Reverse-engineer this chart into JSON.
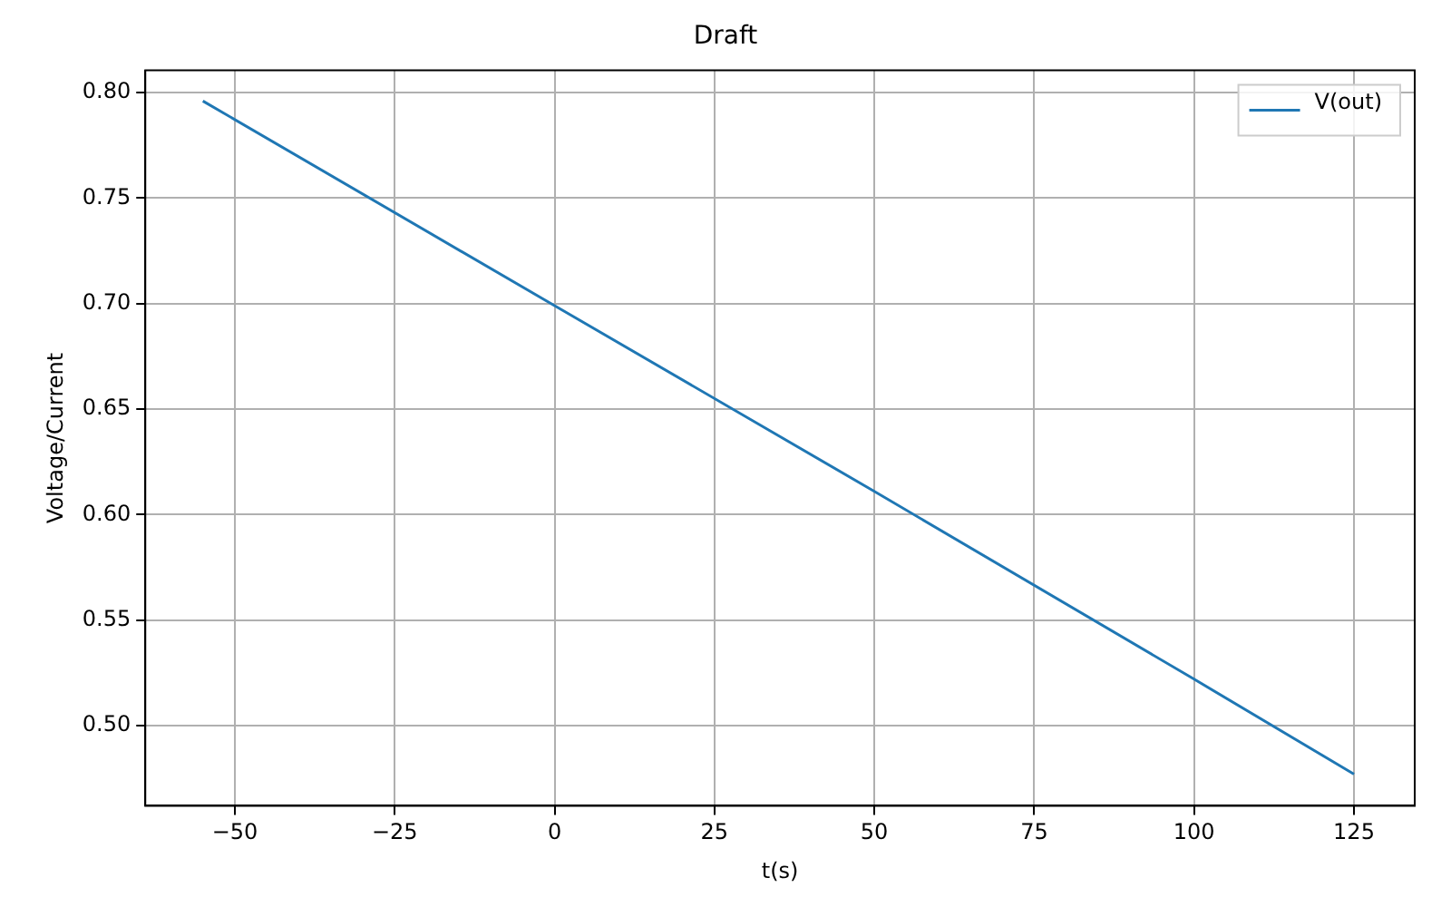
{
  "chart_data": {
    "type": "line",
    "title": "Draft",
    "xlabel": "t(s)",
    "ylabel": "Voltage/Current",
    "x": [
      -55,
      0,
      50,
      100,
      125
    ],
    "series": [
      {
        "name": "V(out)",
        "color": "#1f77b4",
        "values": [
          0.796,
          0.699,
          0.611,
          0.522,
          0.477
        ]
      }
    ],
    "xlim": [
      -64,
      134.5
    ],
    "xticks": [
      {
        "value": -50,
        "label": "−50"
      },
      {
        "value": -25,
        "label": "−25"
      },
      0,
      25,
      50,
      75,
      100,
      125
    ],
    "ylim": [
      0.462,
      0.8105
    ],
    "yticks": [
      {
        "value": 0.5,
        "label": "0.50"
      },
      {
        "value": 0.55,
        "label": "0.55"
      },
      {
        "value": 0.6,
        "label": "0.60"
      },
      {
        "value": 0.65,
        "label": "0.65"
      },
      {
        "value": 0.7,
        "label": "0.70"
      },
      {
        "value": 0.75,
        "label": "0.75"
      },
      {
        "value": 0.8,
        "label": "0.80"
      }
    ],
    "grid": true,
    "legend": "top right",
    "marker": "none",
    "line_style": "solid"
  }
}
